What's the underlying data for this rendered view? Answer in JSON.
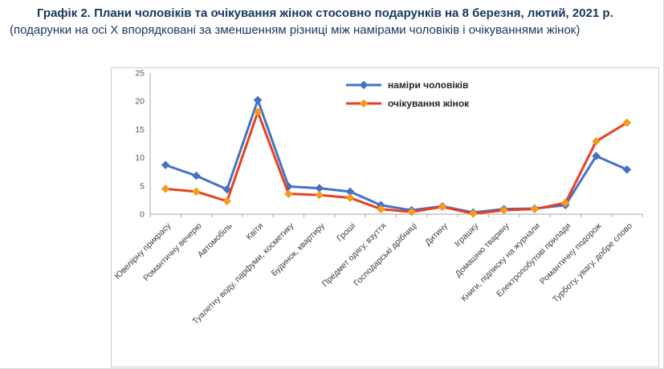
{
  "title": {
    "bold": "Графік 2. Плани чоловіків та очікування жінок стосовно подарунків на 8 березня, лютий, 2021 р.",
    "normal": " (подарунки на осі X впорядковані за зменшенням різниці між намірами чоловіків і очікуваннями жінок)"
  },
  "chart_data": {
    "type": "line",
    "title": "",
    "xlabel": "",
    "ylabel": "",
    "ylim": [
      0,
      25
    ],
    "yticks": [
      0,
      5,
      10,
      15,
      20,
      25
    ],
    "grid": false,
    "legend_position": "top-center",
    "categories": [
      "Ювелірну прикрасу",
      "Романтичну вечерю",
      "Автомобіль",
      "Квіти",
      "Туалетну воду, парфуми, косметику",
      "Будинок, квартиру",
      "Гроші",
      "Предмет одягу, взуття",
      "Господарські дрібниці",
      "Дитину",
      "Іграшку",
      "Домашню тварину",
      "Книги, підписку на журнали",
      "Електропобутові прилади",
      "Романтичну подорож",
      "Турботу, увагу, добре слово"
    ],
    "series": [
      {
        "name": "наміри чоловіків",
        "line_color": "#4472C4",
        "marker_color": "#4472C4",
        "values": [
          8.7,
          6.8,
          4.4,
          20.2,
          4.9,
          4.6,
          4.0,
          1.6,
          0.7,
          1.4,
          0.3,
          0.9,
          1.0,
          1.6,
          10.3,
          7.9
        ]
      },
      {
        "name": "очікування жінок",
        "line_color": "#E8401F",
        "marker_color": "#F59B1E",
        "values": [
          4.5,
          4.0,
          2.3,
          18.1,
          3.6,
          3.4,
          2.9,
          0.9,
          0.4,
          1.3,
          0.1,
          0.7,
          0.9,
          2.0,
          12.9,
          16.2
        ]
      }
    ],
    "colors": {
      "axis": "#a6a6a6",
      "tick_label": "#595959",
      "category_label": "#3f3f3f",
      "legend_text": "#262626"
    }
  }
}
